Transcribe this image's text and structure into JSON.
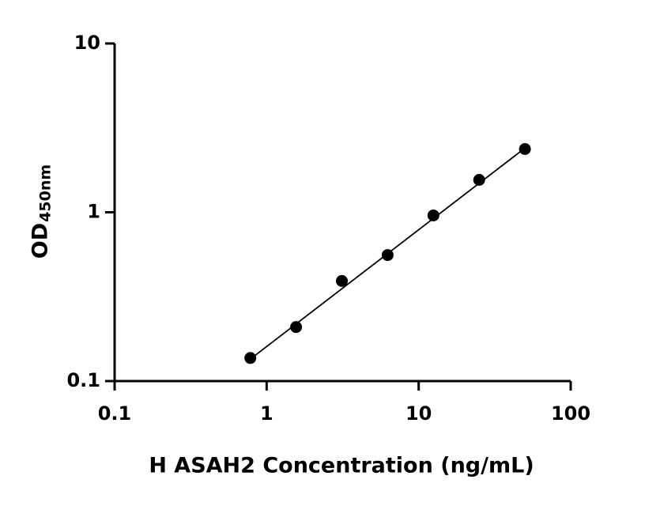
{
  "chart_data": {
    "type": "scatter",
    "x_label": "H ASAH2 Concentration (ng/mL)",
    "y_label": "OD",
    "y_label_sub": "450nm",
    "x": [
      0.78125,
      1.5625,
      3.125,
      6.25,
      12.5,
      25,
      50
    ],
    "series": [
      {
        "color": "#000000",
        "values": [
          0.137,
          0.209,
          0.392,
          0.558,
          0.958,
          1.556,
          2.37
        ]
      }
    ],
    "fit_line": {
      "color": "#000000",
      "x": [
        0.78125,
        50
      ],
      "values": [
        0.135,
        2.4
      ]
    },
    "xlim": [
      0.1,
      100
    ],
    "ylim": [
      0.1,
      10
    ],
    "xticks": [
      0.1,
      1,
      10,
      100
    ],
    "yticks": [
      0.1,
      1,
      10
    ],
    "log_x": true,
    "log_y": true,
    "grid": false
  }
}
